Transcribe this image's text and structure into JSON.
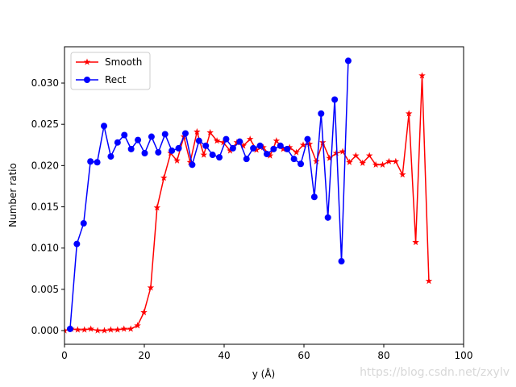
{
  "chart_data": {
    "type": "line",
    "xlabel": "y (Å)",
    "ylabel": "Number ratio",
    "xlim": [
      0,
      100
    ],
    "xticks": [
      0,
      20,
      40,
      60,
      80,
      100
    ],
    "ylim": [
      -0.00166,
      0.0344
    ],
    "yticks": [
      {
        "value": 0,
        "label": "0.000"
      },
      {
        "value": 0.005,
        "label": "0.005"
      },
      {
        "value": 0.01,
        "label": "0.010"
      },
      {
        "value": 0.015,
        "label": "0.015"
      },
      {
        "value": 0.02,
        "label": "0.020"
      },
      {
        "value": 0.025,
        "label": "0.025"
      },
      {
        "value": 0.03,
        "label": "0.030"
      }
    ],
    "legend": "upper left",
    "watermark": "https://blog.csdn.net/zxylv",
    "series": [
      {
        "name": "Smooth",
        "color": "#ff0000",
        "marker": "star",
        "x": [
          0,
          1.7,
          3.3,
          5,
          6.6,
          8.3,
          10,
          11.6,
          13.3,
          14.9,
          16.6,
          18.3,
          19.9,
          21.6,
          23.2,
          24.9,
          26.6,
          28.2,
          29.9,
          31.5,
          33.2,
          34.9,
          36.5,
          38.2,
          39.8,
          41.5,
          43.2,
          44.8,
          46.5,
          48.1,
          49.8,
          51.5,
          53.1,
          54.8,
          56.4,
          58.1,
          59.8,
          61.4,
          63.1,
          64.7,
          66.4,
          68.1,
          69.7,
          71.4,
          73,
          74.7,
          76.4,
          78,
          79.7,
          81.3,
          83,
          84.7,
          86.3,
          88,
          89.6,
          91.3
        ],
        "values": [
          0.0,
          0.0002,
          0.0001,
          0.0001,
          0.0002,
          0.0,
          0.0,
          0.0001,
          0.0001,
          0.0002,
          0.0002,
          0.0006,
          0.0022,
          0.0052,
          0.0149,
          0.0185,
          0.0215,
          0.0206,
          0.0235,
          0.0204,
          0.0241,
          0.0213,
          0.024,
          0.023,
          0.0228,
          0.0218,
          0.0228,
          0.0224,
          0.0232,
          0.0219,
          0.0222,
          0.0212,
          0.023,
          0.022,
          0.0222,
          0.0216,
          0.0225,
          0.0226,
          0.0205,
          0.0228,
          0.0209,
          0.0215,
          0.0217,
          0.0204,
          0.0212,
          0.0203,
          0.0212,
          0.0201,
          0.0201,
          0.0205,
          0.0205,
          0.0189,
          0.0263,
          0.0107,
          0.0309,
          0.006
        ]
      },
      {
        "name": "Rect",
        "color": "#0000ff",
        "marker": "circle",
        "x": [
          1.4,
          3.1,
          4.8,
          6.5,
          8.2,
          9.9,
          11.6,
          13.3,
          15,
          16.7,
          18.4,
          20.1,
          21.8,
          23.5,
          25.2,
          26.9,
          28.6,
          30.3,
          32,
          33.7,
          35.4,
          37.1,
          38.8,
          40.5,
          42.2,
          43.9,
          45.6,
          47.3,
          49,
          50.7,
          52.4,
          54.1,
          55.8,
          57.5,
          59.2,
          60.9,
          62.6,
          64.3,
          66,
          67.7,
          69.4,
          71.1
        ],
        "values": [
          0.0002,
          0.0105,
          0.013,
          0.0205,
          0.0204,
          0.0248,
          0.0211,
          0.0228,
          0.0237,
          0.022,
          0.0231,
          0.0215,
          0.0235,
          0.0216,
          0.0238,
          0.0218,
          0.0221,
          0.0239,
          0.0201,
          0.023,
          0.0224,
          0.0213,
          0.021,
          0.0232,
          0.0221,
          0.0229,
          0.0208,
          0.0221,
          0.0224,
          0.0214,
          0.022,
          0.0224,
          0.022,
          0.0208,
          0.0202,
          0.0232,
          0.0162,
          0.0263,
          0.0137,
          0.028,
          0.0084,
          0.0327
        ]
      }
    ]
  }
}
